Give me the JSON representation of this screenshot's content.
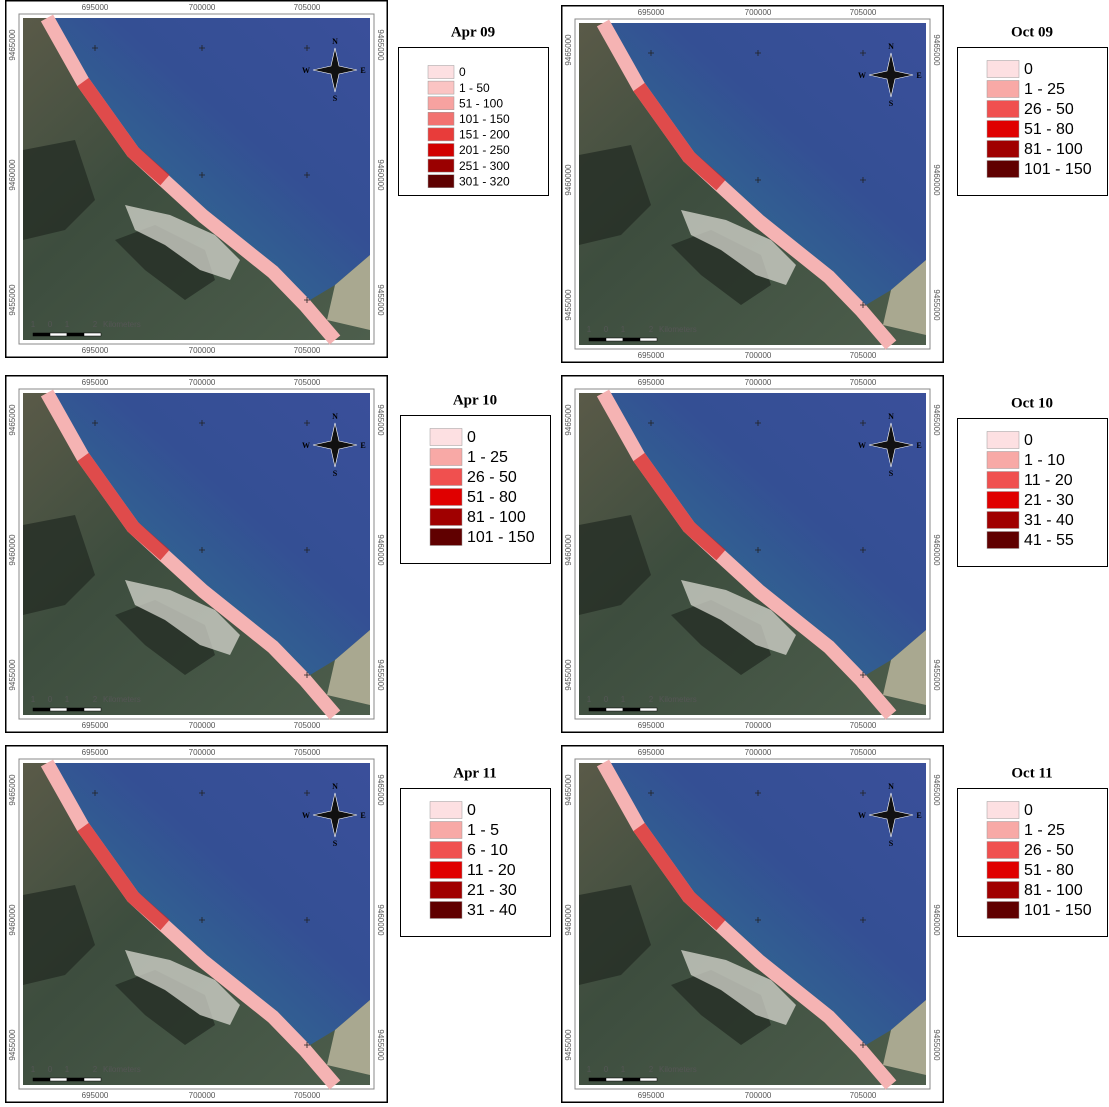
{
  "map_labels": {
    "north": "N",
    "south": "S",
    "east": "E",
    "west": "W",
    "scale_unit": "Kilometers",
    "scale_numbers": [
      1,
      0,
      1,
      2
    ]
  },
  "x_ticks": [
    695000,
    700000,
    705000
  ],
  "y_ticks": [
    9465000,
    9460000,
    9455000
  ],
  "panels": [
    {
      "title": "Apr 09",
      "legend": [
        {
          "label": "0",
          "color": "#fde0e2"
        },
        {
          "label": "1 - 50",
          "color": "#fbc4c3"
        },
        {
          "label": "51 - 100",
          "color": "#f7a2a0"
        },
        {
          "label": "101 - 150",
          "color": "#f27270"
        },
        {
          "label": "151 - 200",
          "color": "#e83c3a"
        },
        {
          "label": "201 - 250",
          "color": "#d10000"
        },
        {
          "label": "251 - 300",
          "color": "#9a0000"
        },
        {
          "label": "301 - 320",
          "color": "#5e0000"
        }
      ]
    },
    {
      "title": "Oct 09",
      "legend": [
        {
          "label": "0",
          "color": "#fde0e2"
        },
        {
          "label": "1 - 25",
          "color": "#f8a9a6"
        },
        {
          "label": "26 - 50",
          "color": "#f0504f"
        },
        {
          "label": "51 - 80",
          "color": "#e00000"
        },
        {
          "label": "81 - 100",
          "color": "#a00000"
        },
        {
          "label": "101 - 150",
          "color": "#600000"
        }
      ]
    },
    {
      "title": "Apr 10",
      "legend": [
        {
          "label": "0",
          "color": "#fde0e2"
        },
        {
          "label": "1 - 25",
          "color": "#f8a9a6"
        },
        {
          "label": "26 - 50",
          "color": "#f0504f"
        },
        {
          "label": "51 - 80",
          "color": "#e00000"
        },
        {
          "label": "81 - 100",
          "color": "#a00000"
        },
        {
          "label": "101 - 150",
          "color": "#600000"
        }
      ]
    },
    {
      "title": "Oct 10",
      "legend": [
        {
          "label": "0",
          "color": "#fde0e2"
        },
        {
          "label": "1 - 10",
          "color": "#f8a9a6"
        },
        {
          "label": "11 - 20",
          "color": "#f0504f"
        },
        {
          "label": "21 - 30",
          "color": "#e00000"
        },
        {
          "label": "31 - 40",
          "color": "#a00000"
        },
        {
          "label": "41 - 55",
          "color": "#600000"
        }
      ]
    },
    {
      "title": "Apr 11",
      "legend": [
        {
          "label": "0",
          "color": "#fde0e2"
        },
        {
          "label": "1 - 5",
          "color": "#f8a9a6"
        },
        {
          "label": "6 - 10",
          "color": "#f0504f"
        },
        {
          "label": "11 - 20",
          "color": "#e00000"
        },
        {
          "label": "21 - 30",
          "color": "#a00000"
        },
        {
          "label": "31 - 40",
          "color": "#600000"
        }
      ]
    },
    {
      "title": "Oct 11",
      "legend": [
        {
          "label": "0",
          "color": "#fde0e2"
        },
        {
          "label": "1 - 25",
          "color": "#f8a9a6"
        },
        {
          "label": "26 - 50",
          "color": "#f0504f"
        },
        {
          "label": "51 - 80",
          "color": "#e00000"
        },
        {
          "label": "81 - 100",
          "color": "#a00000"
        },
        {
          "label": "101 - 150",
          "color": "#600000"
        }
      ]
    }
  ]
}
